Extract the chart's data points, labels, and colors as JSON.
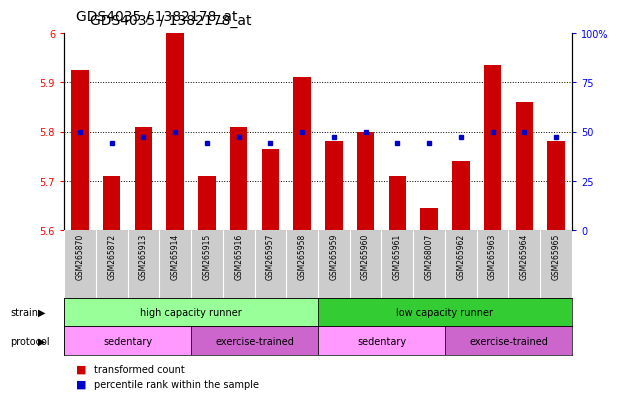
{
  "title": "GDS4035 / 1382178_at",
  "samples": [
    "GSM265870",
    "GSM265872",
    "GSM265913",
    "GSM265914",
    "GSM265915",
    "GSM265916",
    "GSM265957",
    "GSM265958",
    "GSM265959",
    "GSM265960",
    "GSM265961",
    "GSM268007",
    "GSM265962",
    "GSM265963",
    "GSM265964",
    "GSM265965"
  ],
  "red_values": [
    5.925,
    5.71,
    5.81,
    6.0,
    5.71,
    5.81,
    5.765,
    5.91,
    5.78,
    5.8,
    5.71,
    5.645,
    5.74,
    5.935,
    5.86,
    5.78
  ],
  "blue_percentile": [
    50,
    44,
    47,
    50,
    44,
    47,
    44,
    50,
    47,
    50,
    44,
    44,
    47,
    50,
    50,
    47
  ],
  "ylim_left": [
    5.6,
    6.0
  ],
  "ylim_right": [
    0,
    100
  ],
  "yticks_left": [
    5.6,
    5.7,
    5.8,
    5.9,
    6.0
  ],
  "ytick_labels_left": [
    "5.6",
    "5.7",
    "5.8",
    "5.9",
    "6"
  ],
  "yticks_right": [
    0,
    25,
    50,
    75,
    100
  ],
  "ytick_labels_right": [
    "0",
    "25",
    "50",
    "75",
    "100%"
  ],
  "bar_color": "#cc0000",
  "dot_color": "#0000cc",
  "baseline": 5.6,
  "strain_groups": [
    {
      "label": "high capacity runner",
      "start": 0,
      "end": 8,
      "color": "#99ff99"
    },
    {
      "label": "low capacity runner",
      "start": 8,
      "end": 16,
      "color": "#33cc33"
    }
  ],
  "protocol_groups": [
    {
      "label": "sedentary",
      "start": 0,
      "end": 4,
      "color": "#ff99ff"
    },
    {
      "label": "exercise-trained",
      "start": 4,
      "end": 8,
      "color": "#cc66cc"
    },
    {
      "label": "sedentary",
      "start": 8,
      "end": 12,
      "color": "#ff99ff"
    },
    {
      "label": "exercise-trained",
      "start": 12,
      "end": 16,
      "color": "#cc66cc"
    }
  ],
  "legend_red": "transformed count",
  "legend_blue": "percentile rank within the sample",
  "tick_area_bg": "#cccccc",
  "title_fontsize": 10,
  "bar_fontsize": 5.5,
  "label_fontsize": 7,
  "annot_fontsize": 7
}
